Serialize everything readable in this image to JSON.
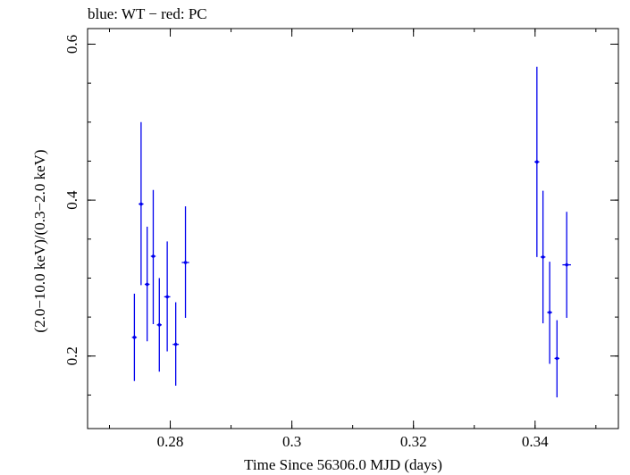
{
  "chart_data": {
    "type": "scatter",
    "title": "blue: WT − red: PC",
    "xlabel": "Time Since 56306.0 MJD (days)",
    "ylabel": "(2.0−10.0 keV)/(0.3−2.0 keV)",
    "xlim": [
      0.2664,
      0.3537
    ],
    "ylim": [
      0.107,
      0.62
    ],
    "x_ticks": [
      {
        "value": 0.28,
        "label": "0.28"
      },
      {
        "value": 0.3,
        "label": "0.3"
      },
      {
        "value": 0.32,
        "label": "0.32"
      },
      {
        "value": 0.34,
        "label": "0.34"
      }
    ],
    "y_ticks": [
      {
        "value": 0.2,
        "label": "0.2"
      },
      {
        "value": 0.4,
        "label": "0.4"
      },
      {
        "value": 0.6,
        "label": "0.6"
      }
    ],
    "grid": false,
    "series": [
      {
        "color": "#0000ee",
        "points": [
          {
            "x": 0.2741,
            "xerr": 0.0004,
            "y": 0.224,
            "ylo": 0.168,
            "yhi": 0.28
          },
          {
            "x": 0.2752,
            "xerr": 0.0004,
            "y": 0.395,
            "ylo": 0.291,
            "yhi": 0.5
          },
          {
            "x": 0.2762,
            "xerr": 0.0004,
            "y": 0.292,
            "ylo": 0.219,
            "yhi": 0.366
          },
          {
            "x": 0.2772,
            "xerr": 0.0004,
            "y": 0.328,
            "ylo": 0.241,
            "yhi": 0.413
          },
          {
            "x": 0.2782,
            "xerr": 0.0004,
            "y": 0.24,
            "ylo": 0.18,
            "yhi": 0.3
          },
          {
            "x": 0.2795,
            "xerr": 0.0005,
            "y": 0.276,
            "ylo": 0.206,
            "yhi": 0.347
          },
          {
            "x": 0.2809,
            "xerr": 0.0005,
            "y": 0.215,
            "ylo": 0.162,
            "yhi": 0.269
          },
          {
            "x": 0.2825,
            "xerr": 0.0006,
            "y": 0.32,
            "ylo": 0.249,
            "yhi": 0.392
          },
          {
            "x": 0.3403,
            "xerr": 0.0004,
            "y": 0.449,
            "ylo": 0.327,
            "yhi": 0.571
          },
          {
            "x": 0.3413,
            "xerr": 0.0004,
            "y": 0.327,
            "ylo": 0.242,
            "yhi": 0.412
          },
          {
            "x": 0.3424,
            "xerr": 0.0004,
            "y": 0.256,
            "ylo": 0.19,
            "yhi": 0.321
          },
          {
            "x": 0.3436,
            "xerr": 0.0004,
            "y": 0.197,
            "ylo": 0.147,
            "yhi": 0.246
          },
          {
            "x": 0.3452,
            "xerr": 0.0007,
            "y": 0.317,
            "ylo": 0.249,
            "yhi": 0.385
          }
        ]
      }
    ]
  }
}
